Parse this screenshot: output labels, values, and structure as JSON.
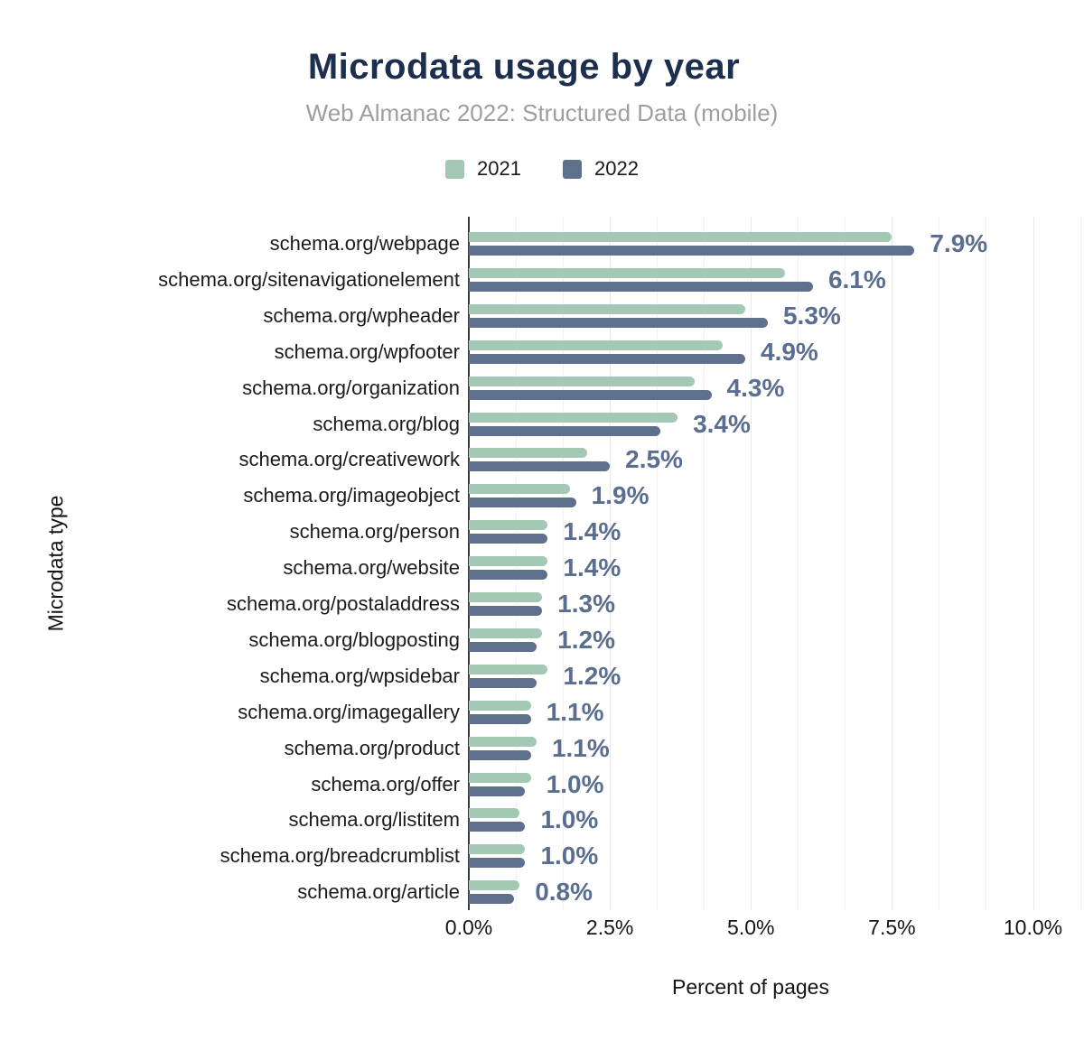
{
  "header": {
    "title": "Microdata usage by year",
    "subtitle": "Web Almanac 2022: Structured Data (mobile)"
  },
  "chart_data": {
    "type": "bar",
    "orientation": "horizontal",
    "title": "Microdata usage by year",
    "subtitle": "Web Almanac 2022: Structured Data (mobile)",
    "xlabel": "Percent of pages",
    "ylabel": "Microdata type",
    "xlim": [
      0,
      10.85
    ],
    "x_tick_labels": [
      "0.0%",
      "2.5%",
      "5.0%",
      "7.5%",
      "10.0%"
    ],
    "x_tick_values": [
      0,
      2.5,
      5,
      7.5,
      10
    ],
    "grid": true,
    "legend_position": "top",
    "categories": [
      "schema.org/webpage",
      "schema.org/sitenavigationelement",
      "schema.org/wpheader",
      "schema.org/wpfooter",
      "schema.org/organization",
      "schema.org/blog",
      "schema.org/creativework",
      "schema.org/imageobject",
      "schema.org/person",
      "schema.org/website",
      "schema.org/postaladdress",
      "schema.org/blogposting",
      "schema.org/wpsidebar",
      "schema.org/imagegallery",
      "schema.org/product",
      "schema.org/offer",
      "schema.org/listitem",
      "schema.org/breadcrumblist",
      "schema.org/article"
    ],
    "series": [
      {
        "name": "2021",
        "color": "#a3c9b4",
        "values": [
          7.5,
          5.6,
          4.9,
          4.5,
          4.0,
          3.7,
          2.1,
          1.8,
          1.4,
          1.4,
          1.3,
          1.3,
          1.4,
          1.1,
          1.2,
          1.1,
          0.9,
          1.0,
          0.9
        ]
      },
      {
        "name": "2022",
        "color": "#5f708c",
        "values": [
          7.9,
          6.1,
          5.3,
          4.9,
          4.3,
          3.4,
          2.5,
          1.9,
          1.4,
          1.4,
          1.3,
          1.2,
          1.2,
          1.1,
          1.1,
          1.0,
          1.0,
          1.0,
          0.8
        ]
      }
    ],
    "data_labels": [
      "7.9%",
      "6.1%",
      "5.3%",
      "4.9%",
      "4.3%",
      "3.4%",
      "2.5%",
      "1.9%",
      "1.4%",
      "1.4%",
      "1.3%",
      "1.2%",
      "1.2%",
      "1.1%",
      "1.1%",
      "1.0%",
      "1.0%",
      "1.0%",
      "0.8%"
    ],
    "data_labels_for_series": "2022"
  },
  "colors": {
    "title": "#1d2f4e",
    "subtitle": "#9e9e9e",
    "value_label": "#5a6e91",
    "axis_line": "#3a3a3a",
    "gridline_minor": "#f3f3f3",
    "gridline_major": "#e9e9e9",
    "background": "#ffffff"
  }
}
